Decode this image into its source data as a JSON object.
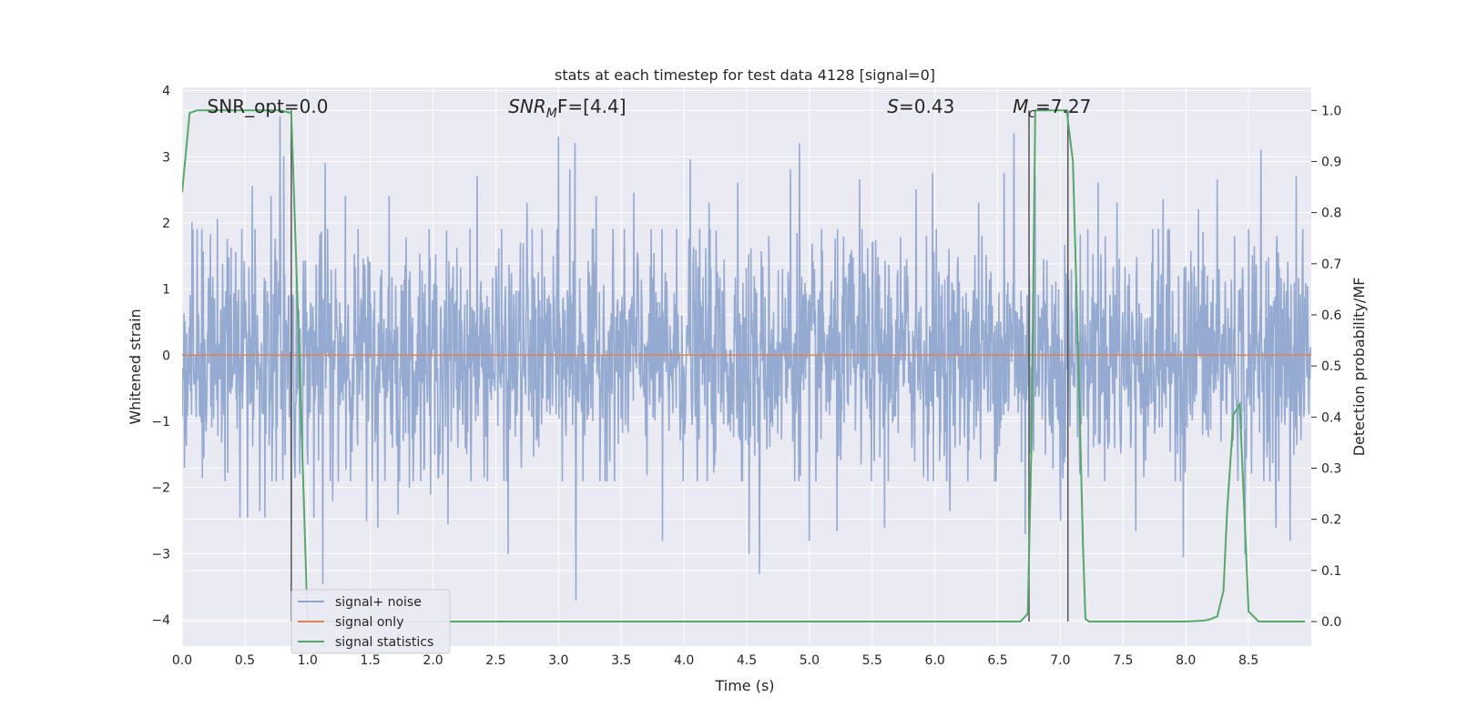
{
  "chart_data": {
    "type": "line",
    "title": "stats at each timestep for test data 4128 [signal=0]",
    "xlabel": "Time (s)",
    "ylabel": "Whitened strain",
    "ylabel_right": "Detection probability/MF",
    "xlim": [
      0,
      9.0
    ],
    "ylim": [
      -4.4,
      4.05
    ],
    "ylim_right": [
      -0.048,
      1.045
    ],
    "x_ticks": [
      0.0,
      0.5,
      1.0,
      1.5,
      2.0,
      2.5,
      3.0,
      3.5,
      4.0,
      4.5,
      5.0,
      5.5,
      6.0,
      6.5,
      7.0,
      7.5,
      8.0,
      8.5
    ],
    "x_tick_labels": [
      "0.0",
      "0.5",
      "1.0",
      "1.5",
      "2.0",
      "2.5",
      "3.0",
      "3.5",
      "4.0",
      "4.5",
      "5.0",
      "5.5",
      "6.0",
      "6.5",
      "7.0",
      "7.5",
      "8.0",
      "8.5"
    ],
    "y_ticks": [
      4,
      3,
      2,
      1,
      0,
      -1,
      -2,
      -3,
      -4
    ],
    "y_tick_labels": [
      "4",
      "3",
      "2",
      "1",
      "0",
      "−1",
      "−2",
      "−3",
      "−4"
    ],
    "y_ticks_right": [
      1.0,
      0.9,
      0.8,
      0.7,
      0.6,
      0.5,
      0.4,
      0.3,
      0.2,
      0.1,
      0.0
    ],
    "y_tick_labels_right": [
      "1.0",
      "0.9",
      "0.8",
      "0.7",
      "0.6",
      "0.5",
      "0.4",
      "0.3",
      "0.2",
      "0.1",
      "0.0"
    ],
    "grid": true,
    "legend_position": "lower-left",
    "annotations": [
      {
        "text": "SNR_opt=0.0",
        "x": 0.2
      },
      {
        "text": "SNR",
        "sub": "M",
        "rest": "F=[4.4]",
        "x": 2.6
      },
      {
        "text": "S",
        "rest": "=0.43",
        "x": 5.62
      },
      {
        "text": "M",
        "sub": "c",
        "rest": "=7.27",
        "x": 6.62
      }
    ],
    "vlines": [
      0.87,
      6.75,
      7.06
    ],
    "series": [
      {
        "name": "signal+ noise",
        "color": "#8fa6cf",
        "note": "dense whitened noise, approx N(0,1), 9 s",
        "n": 2400,
        "std": 0.85,
        "spikes": [
          [
            0.08,
            2.0
          ],
          [
            0.16,
            -1.85
          ],
          [
            0.28,
            2.05
          ],
          [
            0.36,
            1.75
          ],
          [
            0.46,
            -2.45
          ],
          [
            0.52,
            -2.45
          ],
          [
            0.56,
            2.55
          ],
          [
            0.58,
            1.9
          ],
          [
            0.62,
            -2.35
          ],
          [
            0.66,
            -2.45
          ],
          [
            0.71,
            2.4
          ],
          [
            0.78,
            3.6
          ],
          [
            0.81,
            3.0
          ],
          [
            0.87,
            -2.55
          ],
          [
            0.9,
            -1.85
          ],
          [
            1.05,
            -2.45
          ],
          [
            1.12,
            -3.45
          ],
          [
            1.14,
            2.9
          ],
          [
            1.2,
            -2.2
          ],
          [
            1.3,
            2.4
          ],
          [
            1.47,
            -2.5
          ],
          [
            1.56,
            -2.6
          ],
          [
            1.65,
            2.4
          ],
          [
            1.72,
            -2.4
          ],
          [
            1.81,
            -2.0
          ],
          [
            1.98,
            -2.1
          ],
          [
            2.12,
            -2.55
          ],
          [
            2.35,
            2.7
          ],
          [
            2.6,
            -3.0
          ],
          [
            2.75,
            2.3
          ],
          [
            3.0,
            3.3
          ],
          [
            3.09,
            2.8
          ],
          [
            3.13,
            3.2
          ],
          [
            3.14,
            -3.7
          ],
          [
            3.3,
            2.4
          ],
          [
            3.6,
            2.45
          ],
          [
            3.83,
            -2.8
          ],
          [
            4.05,
            2.95
          ],
          [
            4.2,
            2.3
          ],
          [
            4.43,
            2.6
          ],
          [
            4.52,
            -3.0
          ],
          [
            4.6,
            -3.3
          ],
          [
            4.85,
            2.8
          ],
          [
            4.92,
            3.2
          ],
          [
            5.0,
            -2.8
          ],
          [
            5.22,
            -2.65
          ],
          [
            5.4,
            2.65
          ],
          [
            5.6,
            -2.6
          ],
          [
            5.85,
            2.5
          ],
          [
            5.98,
            2.75
          ],
          [
            6.12,
            -2.35
          ],
          [
            6.35,
            2.3
          ],
          [
            6.55,
            2.75
          ],
          [
            6.63,
            3.35
          ],
          [
            6.72,
            -2.7
          ],
          [
            6.8,
            2.7
          ],
          [
            7.0,
            -2.5
          ],
          [
            7.3,
            2.6
          ],
          [
            7.45,
            2.3
          ],
          [
            7.6,
            -2.65
          ],
          [
            7.82,
            2.35
          ],
          [
            7.98,
            -3.05
          ],
          [
            8.1,
            2.2
          ],
          [
            8.25,
            2.65
          ],
          [
            8.47,
            -3.0
          ],
          [
            8.6,
            3.1
          ],
          [
            8.72,
            -2.6
          ],
          [
            8.83,
            -2.8
          ],
          [
            8.88,
            2.7
          ]
        ]
      },
      {
        "name": "signal only",
        "color": "#dd8452",
        "x": [
          0,
          9.0
        ],
        "y": [
          0,
          0
        ]
      },
      {
        "name": "signal statistics",
        "color": "#55a868",
        "axis": "right",
        "x": [
          0.0,
          0.06,
          0.12,
          0.2,
          0.3,
          0.5,
          0.7,
          0.78,
          0.87,
          0.93,
          1.0,
          1.05,
          2.0,
          4.0,
          6.0,
          6.68,
          6.74,
          6.77,
          6.8,
          7.05,
          7.1,
          7.15,
          7.18,
          7.2,
          7.23,
          7.3,
          8.0,
          8.15,
          8.2,
          8.25,
          8.3,
          8.33,
          8.38,
          8.43,
          8.5,
          8.58,
          8.7,
          8.95
        ],
        "y": [
          0.84,
          0.995,
          1.0,
          1.0,
          1.0,
          1.0,
          1.0,
          1.0,
          0.995,
          0.55,
          0.0,
          0.0,
          0.0,
          0.0,
          0.0,
          0.0,
          0.015,
          0.35,
          1.0,
          1.0,
          0.9,
          0.45,
          0.15,
          0.005,
          0.0,
          0.0,
          0.0,
          0.002,
          0.005,
          0.01,
          0.06,
          0.22,
          0.405,
          0.425,
          0.02,
          0.0,
          0.0,
          0.0
        ]
      }
    ]
  }
}
